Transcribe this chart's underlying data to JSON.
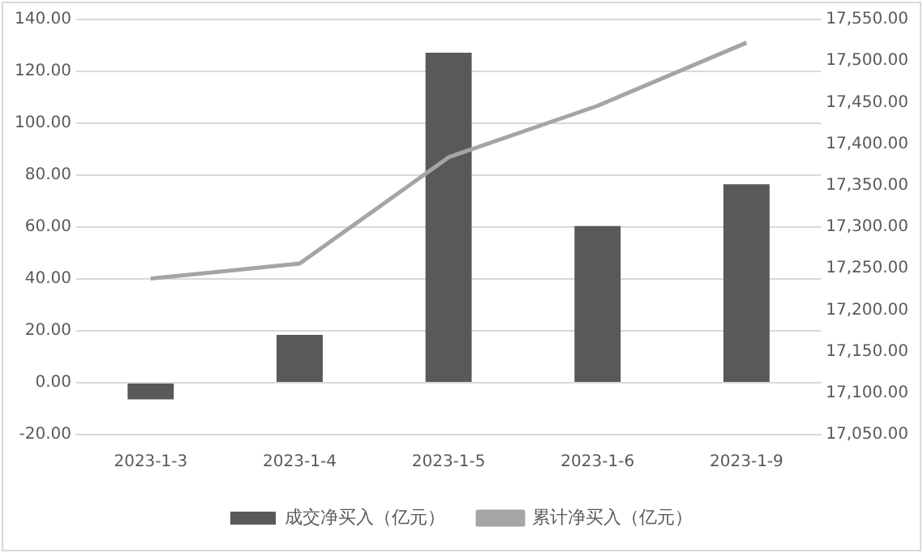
{
  "chart_data": {
    "type": "bar",
    "categories": [
      "2023-1-3",
      "2023-1-4",
      "2023-1-5",
      "2023-1-6",
      "2023-1-9"
    ],
    "series": [
      {
        "name": "成交净买入（亿元）",
        "color": "#595959",
        "values": [
          -6.4,
          18.4,
          127.2,
          60.4,
          76.5
        ]
      },
      {
        "name": "累计净买入（亿元）",
        "type": "line",
        "axis": "y2",
        "color": "#a5a5a5",
        "values": [
          17238,
          17256,
          17384,
          17446,
          17522
        ]
      }
    ],
    "ylim": [
      -20,
      140
    ],
    "yticks": [
      {
        "value": -20,
        "label": "-20.00"
      },
      {
        "value": 0,
        "label": "0.00"
      },
      {
        "value": 20,
        "label": "20.00"
      },
      {
        "value": 40,
        "label": "40.00"
      },
      {
        "value": 60,
        "label": "60.00"
      },
      {
        "value": 80,
        "label": "80.00"
      },
      {
        "value": 100,
        "label": "100.00"
      },
      {
        "value": 120,
        "label": "120.00"
      },
      {
        "value": 140,
        "label": "140.00"
      }
    ],
    "y2lim": [
      17050,
      17550
    ],
    "y2ticks": [
      {
        "value": 17050,
        "label": "17,050.00"
      },
      {
        "value": 17100,
        "label": "17,100.00"
      },
      {
        "value": 17150,
        "label": "17,150.00"
      },
      {
        "value": 17200,
        "label": "17,200.00"
      },
      {
        "value": 17250,
        "label": "17,250.00"
      },
      {
        "value": 17300,
        "label": "17,300.00"
      },
      {
        "value": 17350,
        "label": "17,350.00"
      },
      {
        "value": 17400,
        "label": "17,400.00"
      },
      {
        "value": 17450,
        "label": "17,450.00"
      },
      {
        "value": 17500,
        "label": "17,500.00"
      },
      {
        "value": 17550,
        "label": "17,550.00"
      }
    ],
    "grid": "y",
    "legend": "bottom",
    "marker": "none",
    "line_style": "solid"
  }
}
